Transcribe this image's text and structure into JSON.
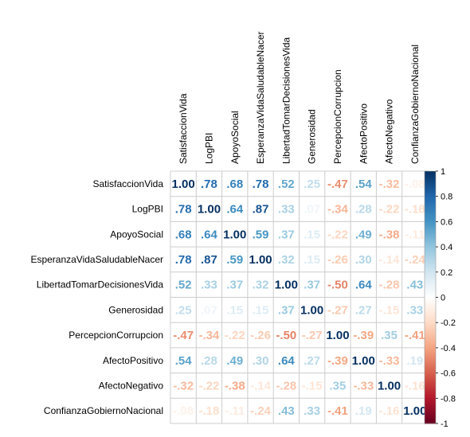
{
  "chart_data": {
    "type": "heatmap",
    "variables": [
      "SatisfaccionVida",
      "LogPBI",
      "ApoyoSocial",
      "EsperanzaVidaSaludableNacer",
      "LibertadTomarDecisionesVida",
      "Generosidad",
      "PercepcionCorrupcion",
      "AfectoPositivo",
      "AfectoNegativo",
      "ConfianzaGobiernoNacional"
    ],
    "matrix": [
      [
        1.0,
        0.78,
        0.68,
        0.78,
        0.52,
        0.25,
        -0.47,
        0.54,
        -0.32,
        -0.08
      ],
      [
        0.78,
        1.0,
        0.64,
        0.87,
        0.33,
        0.07,
        -0.34,
        0.28,
        -0.22,
        -0.18
      ],
      [
        0.68,
        0.64,
        1.0,
        0.59,
        0.37,
        0.15,
        -0.22,
        0.49,
        -0.38,
        -0.11
      ],
      [
        0.78,
        0.87,
        0.59,
        1.0,
        0.32,
        0.15,
        -0.26,
        0.3,
        -0.14,
        -0.24
      ],
      [
        0.52,
        0.33,
        0.37,
        0.32,
        1.0,
        0.37,
        -0.5,
        0.64,
        -0.28,
        0.43
      ],
      [
        0.25,
        0.07,
        0.15,
        0.15,
        0.37,
        1.0,
        -0.27,
        0.27,
        -0.15,
        0.33
      ],
      [
        -0.47,
        -0.34,
        -0.22,
        -0.26,
        -0.5,
        -0.27,
        1.0,
        -0.39,
        0.35,
        -0.41
      ],
      [
        0.54,
        0.28,
        0.49,
        0.3,
        0.64,
        0.27,
        -0.39,
        1.0,
        -0.33,
        0.19
      ],
      [
        -0.32,
        -0.22,
        -0.38,
        -0.14,
        -0.28,
        -0.15,
        0.35,
        -0.33,
        1.0,
        -0.16
      ],
      [
        -0.08,
        -0.18,
        -0.11,
        -0.24,
        0.43,
        0.33,
        -0.41,
        0.19,
        -0.16,
        1.0
      ]
    ],
    "colorbar": {
      "range": [
        -1,
        1
      ],
      "ticks": [
        "1",
        "0.8",
        "0.6",
        "0.4",
        "0.2",
        "0",
        "-0.2",
        "-0.4",
        "-0.6",
        "-0.8",
        "-1"
      ],
      "low_color": "#67001F",
      "mid_color": "#FFFFFF",
      "high_color": "#053061"
    },
    "grid": true
  }
}
